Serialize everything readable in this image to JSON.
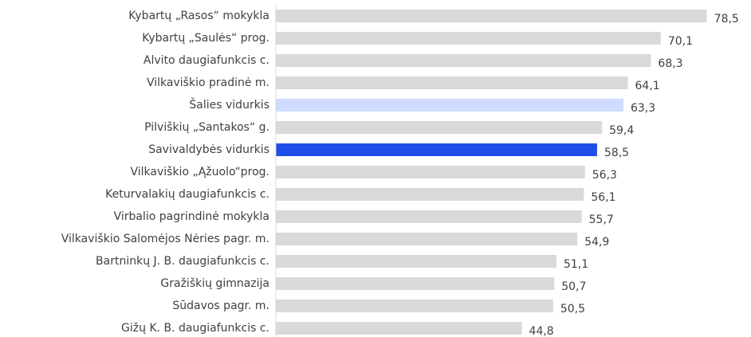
{
  "chart_data": {
    "type": "hbar",
    "categories": [
      "Kybartų „Rasos“ mokykla",
      "Kybartų „Saulės“ prog.",
      "Alvito daugiafunkcis c.",
      "Vilkaviškio pradinė m.",
      "Šalies vidurkis",
      "Pilviškių „Santakos“ g.",
      "Savivaldybės vidurkis",
      "Vilkaviškio „Ąžuolo“prog.",
      "Keturvalakių daugiafunkcis c.",
      "Virbalio pagrindinė mokykla",
      "Vilkaviškio Salomėjos Nėries pagr. m.",
      "Bartninkų J. B. daugiafunkcis c.",
      "Gražiškių gimnazija",
      "Sūdavos pagr. m.",
      "Gižų K. B. daugiafunkcis c."
    ],
    "values": [
      78.5,
      70.1,
      68.3,
      64.1,
      63.3,
      59.4,
      58.5,
      56.3,
      56.1,
      55.7,
      54.9,
      51.1,
      50.7,
      50.5,
      44.8
    ],
    "value_labels": [
      "78,5",
      "70,1",
      "68,3",
      "64,1",
      "63,3",
      "59,4",
      "58,5",
      "56,3",
      "56,1",
      "55,7",
      "54,9",
      "51,1",
      "50,7",
      "50,5",
      "44,8"
    ],
    "colors": [
      "#d9d9d9",
      "#d9d9d9",
      "#d9d9d9",
      "#d9d9d9",
      "#d0dcff",
      "#d9d9d9",
      "#1f4ee8",
      "#d9d9d9",
      "#d9d9d9",
      "#d9d9d9",
      "#d9d9d9",
      "#d9d9d9",
      "#d9d9d9",
      "#d9d9d9",
      "#d9d9d9"
    ],
    "xlim": [
      0,
      80
    ]
  }
}
